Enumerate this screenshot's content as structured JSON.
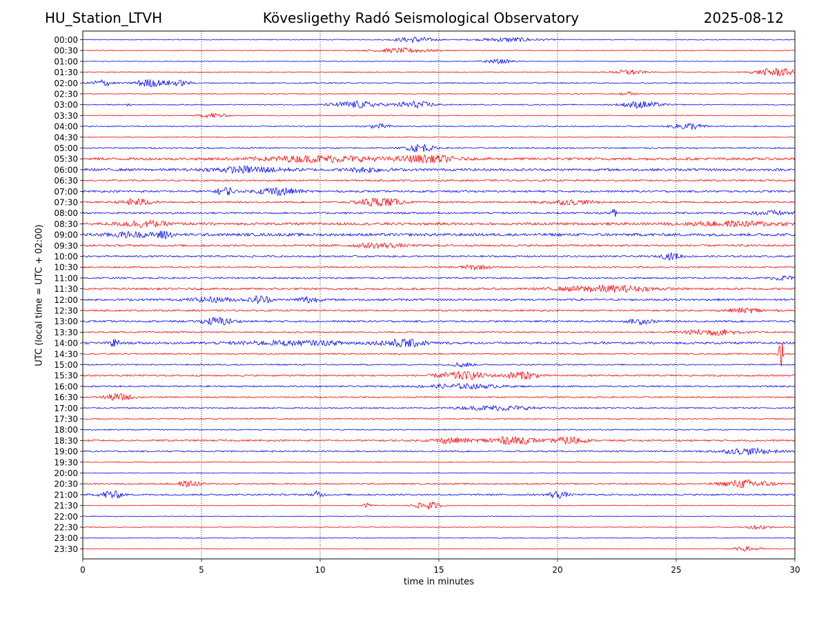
{
  "header": {
    "station": "HU_Station_LTVH",
    "observatory": "Kövesligethy Radó Seismological Observatory",
    "date": "2025-08-12"
  },
  "chart_data": {
    "type": "line",
    "title": "Kövesligethy Radó Seismological Observatory",
    "xlabel": "time in minutes",
    "ylabel": "UTC (local time = UTC + 02:00)",
    "xlim": [
      0,
      30
    ],
    "x_ticks": [
      0,
      5,
      10,
      15,
      20,
      25,
      30
    ],
    "vertical_grid": "dotted",
    "colors": [
      "#0000ff",
      "#ff0000"
    ],
    "rows": [
      {
        "label": "00:00",
        "noise": 0.6,
        "events": [
          [
            14.0,
            0.8,
            2.0
          ],
          [
            18.0,
            1.2,
            1.5
          ]
        ]
      },
      {
        "label": "00:30",
        "noise": 0.6,
        "events": [
          [
            13.5,
            1.2,
            1.6
          ]
        ]
      },
      {
        "label": "01:00",
        "noise": 0.5,
        "events": [
          [
            17.5,
            0.6,
            1.5
          ]
        ]
      },
      {
        "label": "01:30",
        "noise": 0.7,
        "events": [
          [
            23.0,
            0.6,
            1.8
          ],
          [
            29.2,
            0.8,
            3.0
          ]
        ]
      },
      {
        "label": "02:00",
        "noise": 0.8,
        "events": [
          [
            0.8,
            0.4,
            2.5
          ],
          [
            2.8,
            0.6,
            3.0
          ],
          [
            4.0,
            0.5,
            2.0
          ]
        ]
      },
      {
        "label": "02:30",
        "noise": 0.6,
        "events": [
          [
            23.0,
            0.3,
            1.5
          ]
        ]
      },
      {
        "label": "03:00",
        "noise": 0.7,
        "events": [
          [
            1.9,
            0.1,
            2.5
          ],
          [
            11.5,
            1.0,
            2.5
          ],
          [
            14.0,
            0.8,
            2.5
          ],
          [
            23.5,
            0.8,
            2.5
          ]
        ]
      },
      {
        "label": "03:30",
        "noise": 0.6,
        "events": [
          [
            5.5,
            0.5,
            1.8
          ]
        ]
      },
      {
        "label": "04:00",
        "noise": 0.8,
        "events": [
          [
            12.5,
            0.5,
            1.5
          ],
          [
            25.5,
            0.6,
            2.5
          ]
        ]
      },
      {
        "label": "04:30",
        "noise": 0.6,
        "events": []
      },
      {
        "label": "05:00",
        "noise": 1.0,
        "events": [
          [
            14.2,
            0.5,
            3.5
          ]
        ]
      },
      {
        "label": "05:30",
        "noise": 1.8,
        "events": [
          [
            10.0,
            2.5,
            2.0
          ],
          [
            14.5,
            1.0,
            3.0
          ]
        ]
      },
      {
        "label": "06:00",
        "noise": 1.8,
        "events": [
          [
            7.0,
            1.5,
            2.0
          ],
          [
            12.0,
            0.8,
            1.5
          ]
        ]
      },
      {
        "label": "06:30",
        "noise": 1.2,
        "events": []
      },
      {
        "label": "07:00",
        "noise": 1.4,
        "events": [
          [
            6.0,
            0.3,
            4.0
          ],
          [
            8.2,
            0.8,
            3.0
          ]
        ]
      },
      {
        "label": "07:30",
        "noise": 1.2,
        "events": [
          [
            2.3,
            0.6,
            2.5
          ],
          [
            12.5,
            0.8,
            4.0
          ],
          [
            20.5,
            1.0,
            1.5
          ]
        ]
      },
      {
        "label": "08:00",
        "noise": 1.3,
        "events": [
          [
            22.4,
            0.1,
            4.5
          ],
          [
            29.0,
            0.8,
            1.5
          ]
        ]
      },
      {
        "label": "08:30",
        "noise": 1.8,
        "events": [
          [
            2.5,
            1.0,
            2.0
          ],
          [
            27.5,
            2.0,
            1.5
          ]
        ]
      },
      {
        "label": "09:00",
        "noise": 2.0,
        "events": [
          [
            3.4,
            0.3,
            3.5
          ],
          [
            2.0,
            1.0,
            1.5
          ]
        ]
      },
      {
        "label": "09:30",
        "noise": 1.4,
        "events": [
          [
            12.5,
            1.0,
            1.6
          ]
        ]
      },
      {
        "label": "10:00",
        "noise": 1.2,
        "events": [
          [
            24.8,
            0.4,
            2.5
          ]
        ]
      },
      {
        "label": "10:30",
        "noise": 1.0,
        "events": [
          [
            16.5,
            0.6,
            1.6
          ]
        ]
      },
      {
        "label": "11:00",
        "noise": 1.2,
        "events": [
          [
            29.5,
            0.5,
            1.5
          ]
        ]
      },
      {
        "label": "11:30",
        "noise": 1.4,
        "events": [
          [
            22.0,
            2.0,
            2.2
          ]
        ]
      },
      {
        "label": "12:00",
        "noise": 1.5,
        "events": [
          [
            7.5,
            0.4,
            3.0
          ],
          [
            9.5,
            0.4,
            2.5
          ],
          [
            5.5,
            1.0,
            1.5
          ]
        ]
      },
      {
        "label": "12:30",
        "noise": 1.2,
        "events": [
          [
            28.0,
            0.8,
            1.6
          ]
        ]
      },
      {
        "label": "13:00",
        "noise": 1.3,
        "events": [
          [
            5.7,
            0.6,
            3.0
          ],
          [
            23.5,
            0.5,
            1.8
          ]
        ]
      },
      {
        "label": "13:30",
        "noise": 1.0,
        "events": [
          [
            26.5,
            1.2,
            2.2
          ]
        ]
      },
      {
        "label": "14:00",
        "noise": 1.6,
        "events": [
          [
            1.3,
            0.2,
            3.5
          ],
          [
            13.5,
            0.8,
            4.0
          ],
          [
            9.0,
            2.5,
            1.4
          ]
        ]
      },
      {
        "label": "14:30",
        "noise": 0.9,
        "events": [
          [
            29.4,
            0.08,
            18.0
          ]
        ]
      },
      {
        "label": "15:00",
        "noise": 0.9,
        "events": [
          [
            16.0,
            0.4,
            1.8
          ]
        ]
      },
      {
        "label": "15:30",
        "noise": 1.2,
        "events": [
          [
            16.0,
            1.0,
            3.0
          ],
          [
            18.5,
            0.6,
            3.5
          ]
        ]
      },
      {
        "label": "16:00",
        "noise": 1.1,
        "events": [
          [
            16.0,
            1.5,
            1.6
          ]
        ]
      },
      {
        "label": "16:30",
        "noise": 1.0,
        "events": [
          [
            1.5,
            0.6,
            2.5
          ]
        ]
      },
      {
        "label": "17:00",
        "noise": 1.0,
        "events": [
          [
            17.5,
            1.5,
            1.6
          ]
        ]
      },
      {
        "label": "17:30",
        "noise": 0.8,
        "events": []
      },
      {
        "label": "18:00",
        "noise": 0.8,
        "events": []
      },
      {
        "label": "18:30",
        "noise": 1.2,
        "events": [
          [
            18.0,
            1.0,
            3.2
          ],
          [
            20.5,
            0.6,
            3.0
          ],
          [
            15.5,
            0.8,
            2.0
          ]
        ]
      },
      {
        "label": "19:00",
        "noise": 1.0,
        "events": [
          [
            28.0,
            1.2,
            2.0
          ]
        ]
      },
      {
        "label": "19:30",
        "noise": 0.6,
        "events": []
      },
      {
        "label": "20:00",
        "noise": 0.5,
        "events": []
      },
      {
        "label": "20:30",
        "noise": 1.0,
        "events": [
          [
            4.5,
            0.5,
            2.0
          ],
          [
            28.0,
            1.0,
            3.0
          ]
        ]
      },
      {
        "label": "21:00",
        "noise": 1.2,
        "events": [
          [
            1.2,
            0.4,
            3.5
          ],
          [
            9.9,
            0.2,
            2.5
          ],
          [
            20.0,
            0.4,
            2.5
          ]
        ]
      },
      {
        "label": "21:30",
        "noise": 0.5,
        "events": [
          [
            14.5,
            0.5,
            3.0
          ],
          [
            12.0,
            0.2,
            1.5
          ]
        ]
      },
      {
        "label": "22:00",
        "noise": 0.5,
        "events": []
      },
      {
        "label": "22:30",
        "noise": 0.5,
        "events": [
          [
            28.5,
            0.5,
            1.5
          ]
        ]
      },
      {
        "label": "23:00",
        "noise": 0.5,
        "events": []
      },
      {
        "label": "23:30",
        "noise": 0.5,
        "events": [
          [
            28.0,
            0.6,
            1.5
          ]
        ]
      }
    ]
  }
}
